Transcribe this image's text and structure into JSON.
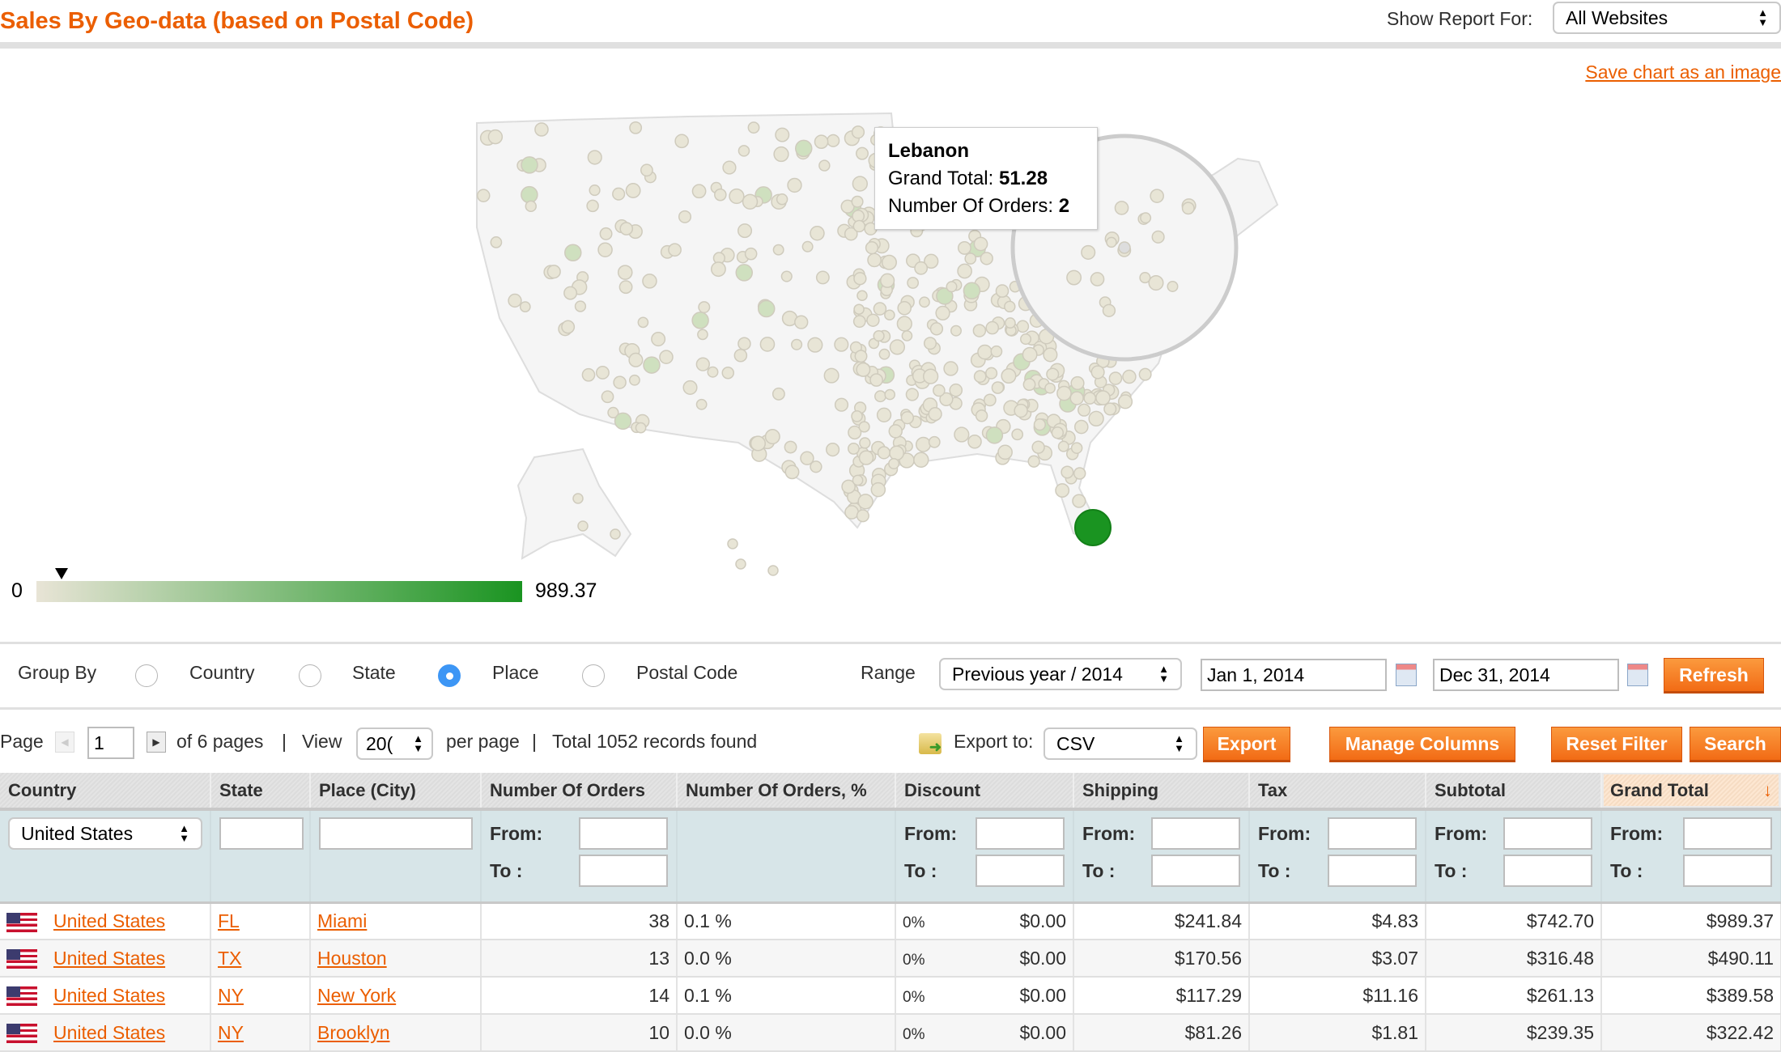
{
  "header": {
    "title": "Sales By Geo-data (based on Postal Code)",
    "show_report_label": "Show Report For:",
    "website_select": "All Websites"
  },
  "chart": {
    "save_link": "Save chart as an image",
    "legend_min": "0",
    "legend_max": "989.37",
    "colors": {
      "low": "#e8e4d6",
      "high": "#1a9421"
    },
    "tooltip": {
      "title": "Lebanon",
      "grand_total_label": "Grand Total:",
      "grand_total": "51.28",
      "orders_label": "Number Of Orders:",
      "orders": "2"
    }
  },
  "controls": {
    "group_by_label": "Group By",
    "options": [
      "Country",
      "State",
      "Place",
      "Postal Code"
    ],
    "selected": "Place",
    "range_label": "Range",
    "range_select": "Previous year / 2014",
    "from_date": "Jan 1, 2014",
    "to_date": "Dec 31, 2014",
    "refresh": "Refresh"
  },
  "pager": {
    "page_label": "Page",
    "page": "1",
    "of_pages": "of 6 pages",
    "view_label": "View",
    "per_page": "20(",
    "per_page_label": "per page",
    "total": "Total 1052 records found",
    "export_label": "Export to:",
    "export_format": "CSV",
    "export_btn": "Export",
    "manage_columns": "Manage Columns",
    "reset_filter": "Reset Filter",
    "search": "Search"
  },
  "table": {
    "columns": [
      "Country",
      "State",
      "Place (City)",
      "Number Of Orders",
      "Number Of Orders, %",
      "Discount",
      "Shipping",
      "Tax",
      "Subtotal",
      "Grand Total"
    ],
    "filter": {
      "country": "United States",
      "from": "From:",
      "to": "To :"
    },
    "rows": [
      {
        "country": "United States",
        "state": "FL",
        "city": "Miami",
        "orders": "38",
        "pct": "0.1 %",
        "disc_pct": "0%",
        "discount": "$0.00",
        "shipping": "$241.84",
        "tax": "$4.83",
        "subtotal": "$742.70",
        "grand": "$989.37"
      },
      {
        "country": "United States",
        "state": "TX",
        "city": "Houston",
        "orders": "13",
        "pct": "0.0 %",
        "disc_pct": "0%",
        "discount": "$0.00",
        "shipping": "$170.56",
        "tax": "$3.07",
        "subtotal": "$316.48",
        "grand": "$490.11"
      },
      {
        "country": "United States",
        "state": "NY",
        "city": "New York",
        "orders": "14",
        "pct": "0.1 %",
        "disc_pct": "0%",
        "discount": "$0.00",
        "shipping": "$117.29",
        "tax": "$11.16",
        "subtotal": "$261.13",
        "grand": "$389.58"
      },
      {
        "country": "United States",
        "state": "NY",
        "city": "Brooklyn",
        "orders": "10",
        "pct": "0.0 %",
        "disc_pct": "0%",
        "discount": "$0.00",
        "shipping": "$81.26",
        "tax": "$1.81",
        "subtotal": "$239.35",
        "grand": "$322.42"
      }
    ]
  }
}
